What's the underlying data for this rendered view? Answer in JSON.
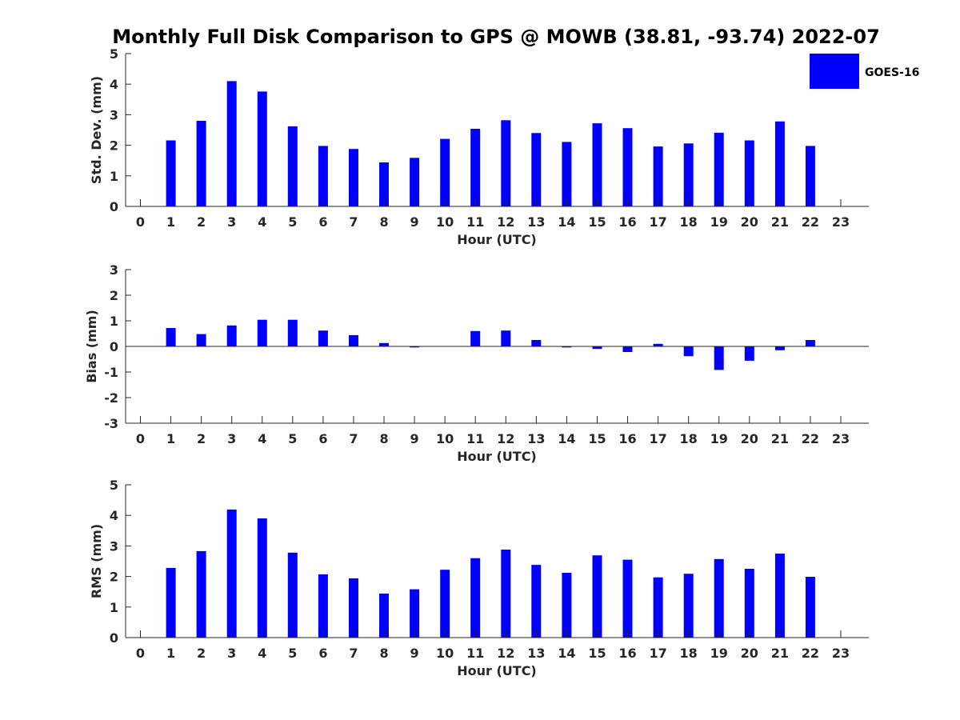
{
  "title": "Monthly Full Disk Comparison to GPS @ MOWB (38.81, -93.74) 2022-07",
  "legend": {
    "label": "GOES-16",
    "color": "#0000ff",
    "placement": "top-right"
  },
  "chart_data": [
    {
      "type": "bar",
      "name": "std",
      "xlabel": "Hour (UTC)",
      "ylabel": "Std. Dev. (mm)",
      "ylim": [
        0,
        5
      ],
      "yticks": [
        0,
        1,
        2,
        3,
        4,
        5
      ],
      "x": [
        0,
        1,
        2,
        3,
        4,
        5,
        6,
        7,
        8,
        9,
        10,
        11,
        12,
        13,
        14,
        15,
        16,
        17,
        18,
        19,
        20,
        21,
        22,
        23
      ],
      "values": [
        null,
        2.16,
        2.8,
        4.1,
        3.76,
        2.62,
        1.98,
        1.88,
        1.44,
        1.59,
        2.21,
        2.54,
        2.82,
        2.4,
        2.11,
        2.72,
        2.56,
        1.96,
        2.06,
        2.41,
        2.16,
        2.78,
        1.98,
        null
      ],
      "grid": false
    },
    {
      "type": "bar",
      "name": "bias",
      "xlabel": "Hour (UTC)",
      "ylabel": "Bias (mm)",
      "ylim": [
        -3,
        3
      ],
      "yticks": [
        -3,
        -2,
        -1,
        0,
        1,
        2,
        3
      ],
      "x": [
        0,
        1,
        2,
        3,
        4,
        5,
        6,
        7,
        8,
        9,
        10,
        11,
        12,
        13,
        14,
        15,
        16,
        17,
        18,
        19,
        20,
        21,
        22,
        23
      ],
      "values": [
        null,
        0.72,
        0.48,
        0.82,
        1.04,
        1.04,
        0.62,
        0.44,
        0.13,
        -0.04,
        0.0,
        0.6,
        0.62,
        0.25,
        -0.04,
        -0.1,
        -0.22,
        0.1,
        -0.38,
        -0.92,
        -0.56,
        -0.15,
        0.25,
        null
      ],
      "grid": false
    },
    {
      "type": "bar",
      "name": "rms",
      "xlabel": "Hour (UTC)",
      "ylabel": "RMS (mm)",
      "ylim": [
        0,
        5
      ],
      "yticks": [
        0,
        1,
        2,
        3,
        4,
        5
      ],
      "x": [
        0,
        1,
        2,
        3,
        4,
        5,
        6,
        7,
        8,
        9,
        10,
        11,
        12,
        13,
        14,
        15,
        16,
        17,
        18,
        19,
        20,
        21,
        22,
        23
      ],
      "values": [
        null,
        2.28,
        2.83,
        4.19,
        3.9,
        2.78,
        2.07,
        1.94,
        1.44,
        1.58,
        2.22,
        2.6,
        2.88,
        2.38,
        2.12,
        2.69,
        2.55,
        1.97,
        2.09,
        2.57,
        2.25,
        2.75,
        1.99,
        null
      ],
      "grid": false
    }
  ]
}
